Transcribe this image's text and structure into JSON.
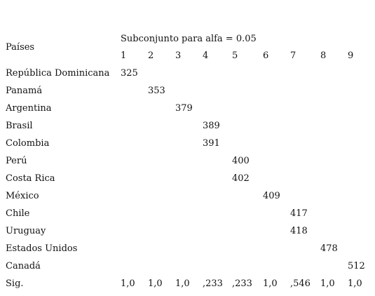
{
  "table": {
    "row_header": "Países",
    "group_header": "Subconjunto para alfa = 0.05",
    "columns": [
      "1",
      "2",
      "3",
      "4",
      "5",
      "6",
      "7",
      "8",
      "9"
    ],
    "rows": [
      {
        "label": "República Dominicana",
        "cells": [
          325,
          null,
          null,
          null,
          null,
          null,
          null,
          null,
          null
        ]
      },
      {
        "label": "Panamá",
        "cells": [
          null,
          353,
          null,
          null,
          null,
          null,
          null,
          null,
          null
        ]
      },
      {
        "label": "Argentina",
        "cells": [
          null,
          null,
          379,
          null,
          null,
          null,
          null,
          null,
          null
        ]
      },
      {
        "label": "Brasil",
        "cells": [
          null,
          null,
          null,
          389,
          null,
          null,
          null,
          null,
          null
        ]
      },
      {
        "label": "Colombia",
        "cells": [
          null,
          null,
          null,
          391,
          null,
          null,
          null,
          null,
          null
        ]
      },
      {
        "label": "Perú",
        "cells": [
          null,
          null,
          null,
          null,
          400,
          null,
          null,
          null,
          null
        ]
      },
      {
        "label": "Costa Rica",
        "cells": [
          null,
          null,
          null,
          null,
          402,
          null,
          null,
          null,
          null
        ]
      },
      {
        "label": "México",
        "cells": [
          null,
          null,
          null,
          null,
          null,
          409,
          null,
          null,
          null
        ]
      },
      {
        "label": "Chile",
        "cells": [
          null,
          null,
          null,
          null,
          null,
          null,
          417,
          null,
          null
        ]
      },
      {
        "label": "Uruguay",
        "cells": [
          null,
          null,
          null,
          null,
          null,
          null,
          418,
          null,
          null
        ]
      },
      {
        "label": "Estados Unidos",
        "cells": [
          null,
          null,
          null,
          null,
          null,
          null,
          null,
          478,
          null
        ]
      },
      {
        "label": "Canadá",
        "cells": [
          null,
          null,
          null,
          null,
          null,
          null,
          null,
          null,
          512
        ]
      },
      {
        "label": "Sig.",
        "cells": [
          "1,0",
          "1,0",
          "1,0",
          ",233",
          ",233",
          "1,0",
          ",546",
          "1,0",
          "1,0"
        ]
      }
    ]
  }
}
